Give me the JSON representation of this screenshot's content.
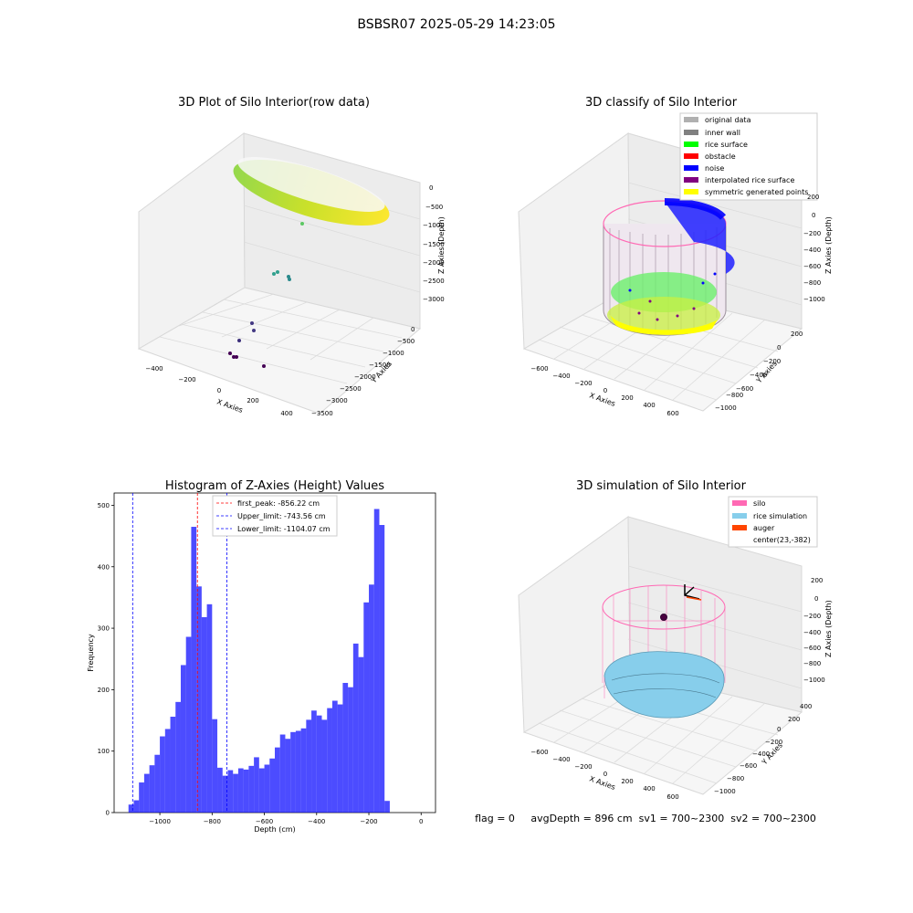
{
  "suptitle": "BSBSR07 2025-05-29 14:23:05",
  "footer": "flag = 0     avgDepth = 896 cm  sv1 = 700~2300  sv2 = 700~2300",
  "chart_data": [
    {
      "type": "scatter",
      "projection": "3d",
      "title": "3D Plot of Silo Interior(row data)",
      "xlabel": "X Axies",
      "ylabel": "Y Axies",
      "zlabel": "Z Axies (Depth)",
      "xticks": [
        "−400",
        "−200",
        "0",
        "200",
        "400"
      ],
      "yticks": [
        "0",
        "−500",
        "−1000",
        "−1500",
        "−2000",
        "−2500",
        "−3000",
        "−3500"
      ],
      "zticks": [
        "0",
        "−500",
        "−1000",
        "−1500",
        "−2000",
        "−2500",
        "−3000"
      ],
      "colormap": "viridis",
      "grid": true
    },
    {
      "type": "scatter",
      "projection": "3d",
      "title": "3D classify of Silo Interior",
      "xlabel": "X Axies",
      "ylabel": "Y Axies",
      "zlabel": "Z Axies (Depth)",
      "xticks": [
        "−600",
        "−400",
        "−200",
        "0",
        "200",
        "400",
        "600"
      ],
      "yticks": [
        "200",
        "0",
        "−200",
        "−400",
        "−600",
        "−800",
        "−1000"
      ],
      "zticks": [
        "200",
        "0",
        "−200",
        "−400",
        "−600",
        "−800",
        "−1000"
      ],
      "legend_position": "top-right",
      "legend": [
        {
          "label": "original data",
          "color": "#b0b0b0"
        },
        {
          "label": "inner wall",
          "color": "#808080"
        },
        {
          "label": "rice surface",
          "color": "#00ff00"
        },
        {
          "label": "obstacle",
          "color": "#ff0000"
        },
        {
          "label": "noise",
          "color": "#0000ff"
        },
        {
          "label": "interpolated rice surface",
          "color": "#800080"
        },
        {
          "label": "symmetric generated points",
          "color": "#ffff00"
        }
      ],
      "grid": true
    },
    {
      "type": "bar",
      "title": "Histogram of Z-Axies (Height) Values",
      "xlabel": "Depth (cm)",
      "ylabel": "Frequency",
      "bin_width": 20,
      "x_start": -1120,
      "counts": [
        13,
        20,
        49,
        63,
        77,
        94,
        124,
        136,
        156,
        180,
        240,
        286,
        465,
        368,
        318,
        339,
        152,
        73,
        60,
        69,
        63,
        72,
        70,
        76,
        90,
        72,
        78,
        88,
        106,
        127,
        120,
        131,
        133,
        137,
        151,
        166,
        158,
        151,
        170,
        182,
        176,
        211,
        204,
        275,
        253,
        342,
        371,
        494,
        468,
        19
      ],
      "bar_color": "#0000ff",
      "bar_alpha": 0.7,
      "xlim": [
        -1175,
        55
      ],
      "ylim": [
        0,
        520
      ],
      "xticks": [
        -1000,
        -800,
        -600,
        -400,
        -200,
        0
      ],
      "xtick_labels": [
        "−1000",
        "−800",
        "−600",
        "−400",
        "−200",
        "0"
      ],
      "yticks": [
        0,
        100,
        200,
        300,
        400,
        500
      ],
      "vlines": [
        {
          "label": "first_peak: -856.22 cm",
          "x": -856.22,
          "color": "#ff0000"
        },
        {
          "label": "Upper_limit: -743.56 cm",
          "x": -743.56,
          "color": "#0000ff"
        },
        {
          "label": "Lower_limit: -1104.07 cm",
          "x": -1104.07,
          "color": "#0000ff"
        }
      ],
      "legend_position": "top-center"
    },
    {
      "type": "scatter",
      "projection": "3d",
      "title": "3D simulation of Silo Interior",
      "xlabel": "X Axies",
      "ylabel": "Y Axies",
      "zlabel": "Z Axies (Depth)",
      "xticks": [
        "−600",
        "−400",
        "−200",
        "0",
        "200",
        "400",
        "600"
      ],
      "yticks": [
        "400",
        "200",
        "0",
        "−200",
        "−400",
        "−600",
        "−800",
        "−1000"
      ],
      "zticks": [
        "200",
        "0",
        "−200",
        "−400",
        "−600",
        "−800",
        "−1000"
      ],
      "legend_position": "top-right",
      "legend": [
        {
          "label": "silo",
          "color": "#ff69b4"
        },
        {
          "label": "rice simulation",
          "color": "#87ceeb"
        },
        {
          "label": "auger",
          "color": "#ff4500"
        },
        {
          "label": "center(23,-382)",
          "color": ""
        }
      ],
      "grid": true
    }
  ]
}
